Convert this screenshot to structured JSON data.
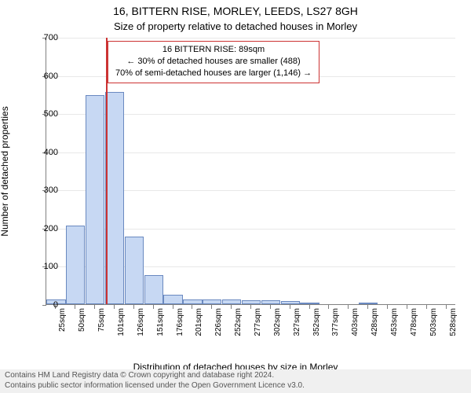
{
  "title_main": "16, BITTERN RISE, MORLEY, LEEDS, LS27 8GH",
  "title_sub": "Size of property relative to detached houses in Morley",
  "ylabel": "Number of detached properties",
  "xlabel": "Distribution of detached houses by size in Morley",
  "footer_line1": "Contains HM Land Registry data © Crown copyright and database right 2024.",
  "footer_line2": "Contains public sector information licensed under the Open Government Licence v3.0.",
  "chart": {
    "type": "histogram",
    "ylim": [
      0,
      700
    ],
    "ytick_step": 100,
    "bar_fill": "#c7d8f3",
    "bar_stroke": "#6a89c0",
    "grid_color": "#e8e8e8",
    "axis_color": "#808080",
    "background": "#ffffff",
    "tick_font_size": 11,
    "label_font_size": 12,
    "marker_value_sqm": 89,
    "marker_color": "#cc3333",
    "marker_width": 2,
    "annotation_border": "#cc3333",
    "annotation_lines": [
      "16 BITTERN RISE: 89sqm",
      "← 30% of detached houses are smaller (488)",
      "70% of semi-detached houses are larger (1,146) →"
    ],
    "categories": [
      "25sqm",
      "50sqm",
      "75sqm",
      "101sqm",
      "126sqm",
      "151sqm",
      "176sqm",
      "201sqm",
      "226sqm",
      "252sqm",
      "277sqm",
      "302sqm",
      "327sqm",
      "352sqm",
      "377sqm",
      "403sqm",
      "428sqm",
      "453sqm",
      "478sqm",
      "503sqm",
      "528sqm"
    ],
    "values": [
      12,
      205,
      548,
      555,
      178,
      76,
      24,
      12,
      12,
      12,
      10,
      10,
      8,
      4,
      0,
      0,
      4,
      0,
      0,
      0,
      0
    ]
  }
}
